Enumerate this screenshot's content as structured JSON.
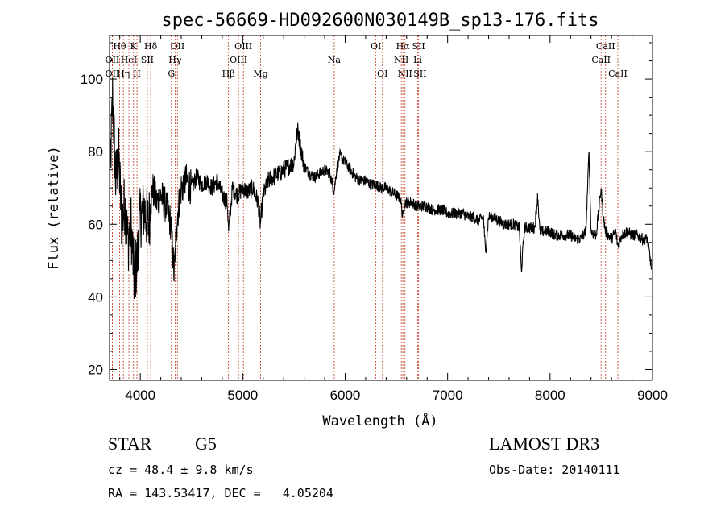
{
  "chart_data": {
    "type": "line",
    "title": "spec-56669-HD092600N030149B_sp13-176.fits",
    "xlabel": "Wavelength (Å)",
    "ylabel": "Flux (relative)",
    "xlim": [
      3700,
      9000
    ],
    "ylim": [
      17,
      112
    ],
    "xticks": [
      4000,
      5000,
      6000,
      7000,
      8000,
      9000
    ],
    "yticks": [
      20,
      40,
      60,
      80,
      100
    ],
    "spectrum_anchors": {
      "x": [
        3700,
        3730,
        3760,
        3790,
        3820,
        3850,
        3880,
        3910,
        3940,
        3970,
        4000,
        4040,
        4080,
        4120,
        4160,
        4200,
        4250,
        4300,
        4330,
        4360,
        4400,
        4450,
        4500,
        4550,
        4600,
        4650,
        4700,
        4750,
        4800,
        4850,
        4862,
        4900,
        4950,
        5000,
        5050,
        5100,
        5150,
        5172,
        5200,
        5250,
        5300,
        5350,
        5400,
        5450,
        5500,
        5520,
        5540,
        5560,
        5600,
        5650,
        5700,
        5750,
        5800,
        5850,
        5893,
        5920,
        5950,
        6000,
        6050,
        6100,
        6150,
        6200,
        6250,
        6300,
        6350,
        6400,
        6450,
        6500,
        6540,
        6563,
        6580,
        6600,
        6650,
        6700,
        6750,
        6800,
        6850,
        6900,
        6950,
        7000,
        7050,
        7100,
        7150,
        7200,
        7250,
        7300,
        7350,
        7370,
        7400,
        7450,
        7500,
        7550,
        7600,
        7650,
        7700,
        7720,
        7750,
        7800,
        7850,
        7880,
        7900,
        7950,
        8000,
        8050,
        8100,
        8150,
        8200,
        8250,
        8300,
        8350,
        8380,
        8400,
        8450,
        8498,
        8520,
        8542,
        8570,
        8600,
        8640,
        8662,
        8700,
        8750,
        8800,
        8850,
        8900,
        8950,
        9000
      ],
      "y": [
        68,
        95,
        72,
        78,
        60,
        66,
        55,
        60,
        45,
        50,
        62,
        64,
        60,
        70,
        66,
        68,
        65,
        60,
        46,
        62,
        70,
        72,
        70,
        73,
        71,
        72,
        70,
        72,
        68,
        66,
        58,
        70,
        68,
        70,
        69,
        70,
        66,
        60,
        68,
        72,
        73,
        74,
        75,
        76,
        77,
        83,
        86,
        82,
        76,
        74,
        73,
        74,
        75,
        74,
        69,
        76,
        79,
        77,
        75,
        73,
        72,
        72,
        71,
        71,
        70,
        70,
        69,
        68,
        67,
        62,
        66,
        66,
        66,
        65,
        65,
        65,
        64,
        64,
        64,
        63,
        63,
        63,
        63,
        62,
        62,
        61,
        62,
        52,
        62,
        62,
        61,
        60,
        60,
        60,
        59,
        47,
        59,
        59,
        59,
        68,
        58,
        58,
        58,
        57,
        57,
        57,
        57,
        56,
        56,
        58,
        80,
        58,
        57,
        70,
        62,
        58,
        57,
        56,
        58,
        54,
        57,
        58,
        57,
        57,
        56,
        56,
        46
      ]
    },
    "spectral_lines": [
      {
        "label": "Hθ",
        "wave": 3798,
        "row": 1
      },
      {
        "label": "K",
        "wave": 3934,
        "row": 1
      },
      {
        "label": "Hδ",
        "wave": 4102,
        "row": 1
      },
      {
        "label": "OII",
        "wave": 4363,
        "row": 1
      },
      {
        "label": "OIII",
        "wave": 5007,
        "row": 1
      },
      {
        "label": "OI",
        "wave": 6300,
        "row": 1
      },
      {
        "label": "Hα",
        "wave": 6563,
        "row": 1
      },
      {
        "label": "SII",
        "wave": 6717,
        "row": 1
      },
      {
        "label": "CaII",
        "wave": 8542,
        "row": 1
      },
      {
        "label": "OII",
        "wave": 3727,
        "row": 2
      },
      {
        "label": "HeI",
        "wave": 3889,
        "row": 2
      },
      {
        "label": "SII",
        "wave": 4069,
        "row": 2
      },
      {
        "label": "Hγ",
        "wave": 4340,
        "row": 2
      },
      {
        "label": "OIII",
        "wave": 4959,
        "row": 2
      },
      {
        "label": "Na",
        "wave": 5893,
        "row": 2
      },
      {
        "label": "NII",
        "wave": 6548,
        "row": 2
      },
      {
        "label": "Li",
        "wave": 6708,
        "row": 2
      },
      {
        "label": "CaII",
        "wave": 8498,
        "row": 2
      },
      {
        "label": "OII",
        "wave": 3727,
        "row": 3
      },
      {
        "label": "Hη",
        "wave": 3835,
        "row": 3
      },
      {
        "label": "H",
        "wave": 3968,
        "row": 3
      },
      {
        "label": "G",
        "wave": 4304,
        "row": 3
      },
      {
        "label": "Hβ",
        "wave": 4861,
        "row": 3
      },
      {
        "label": "Mg",
        "wave": 5175,
        "row": 3
      },
      {
        "label": "OI",
        "wave": 6364,
        "row": 3
      },
      {
        "label": "NII",
        "wave": 6584,
        "row": 3
      },
      {
        "label": "SII",
        "wave": 6731,
        "row": 3
      },
      {
        "label": "CaII",
        "wave": 8662,
        "row": 3
      }
    ]
  },
  "info": {
    "object_class": "STAR",
    "subclass": "G5",
    "survey": "LAMOST DR3",
    "redshift": "cz = 48.4 ± 9.8 km/s",
    "obs_date": "Obs-Date: 20140111",
    "coords": "RA = 143.53417, DEC =   4.05204"
  }
}
